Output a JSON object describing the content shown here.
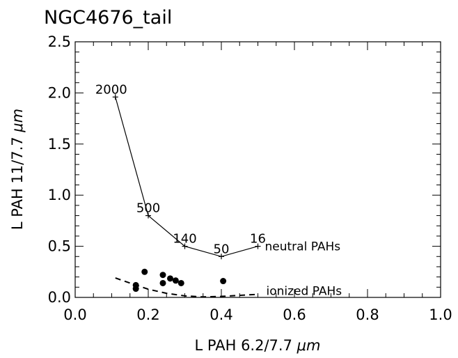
{
  "chart_data": {
    "type": "scatter",
    "title": "NGC4676_tail",
    "xlabel_prefix": "L PAH 6.2/7.7 ",
    "xlabel_unit": "μm",
    "ylabel_prefix": "L PAH 11/7.7 ",
    "ylabel_unit": "μm",
    "xlim": [
      0.0,
      1.0
    ],
    "ylim": [
      0.0,
      2.5
    ],
    "x_ticks": [
      "0.0",
      "0.2",
      "0.4",
      "0.6",
      "0.8",
      "1.0"
    ],
    "y_ticks": [
      "0.0",
      "0.5",
      "1.0",
      "1.5",
      "2.0",
      "2.5"
    ],
    "series": [
      {
        "name": "neutral PAHs",
        "style": "line-plus",
        "points": [
          {
            "x": 0.11,
            "y": 1.96,
            "label": "2000"
          },
          {
            "x": 0.2,
            "y": 0.8,
            "label": "500"
          },
          {
            "x": 0.3,
            "y": 0.5,
            "label": "140"
          },
          {
            "x": 0.4,
            "y": 0.4,
            "label": "50"
          },
          {
            "x": 0.5,
            "y": 0.5,
            "label": "16"
          }
        ]
      },
      {
        "name": "ionized PAHs",
        "style": "dashed",
        "points": [
          {
            "x": 0.11,
            "y": 0.19
          },
          {
            "x": 0.15,
            "y": 0.14
          },
          {
            "x": 0.2,
            "y": 0.08
          },
          {
            "x": 0.25,
            "y": 0.04
          },
          {
            "x": 0.3,
            "y": 0.015
          },
          {
            "x": 0.35,
            "y": 0.005
          },
          {
            "x": 0.4,
            "y": 0.01
          },
          {
            "x": 0.45,
            "y": 0.02
          },
          {
            "x": 0.5,
            "y": 0.03
          }
        ]
      },
      {
        "name": "",
        "style": "dots",
        "points": [
          {
            "x": 0.166,
            "y": 0.12
          },
          {
            "x": 0.166,
            "y": 0.085
          },
          {
            "x": 0.19,
            "y": 0.25
          },
          {
            "x": 0.24,
            "y": 0.22
          },
          {
            "x": 0.24,
            "y": 0.14
          },
          {
            "x": 0.26,
            "y": 0.185
          },
          {
            "x": 0.275,
            "y": 0.165
          },
          {
            "x": 0.29,
            "y": 0.14
          },
          {
            "x": 0.405,
            "y": 0.16
          }
        ]
      }
    ]
  }
}
